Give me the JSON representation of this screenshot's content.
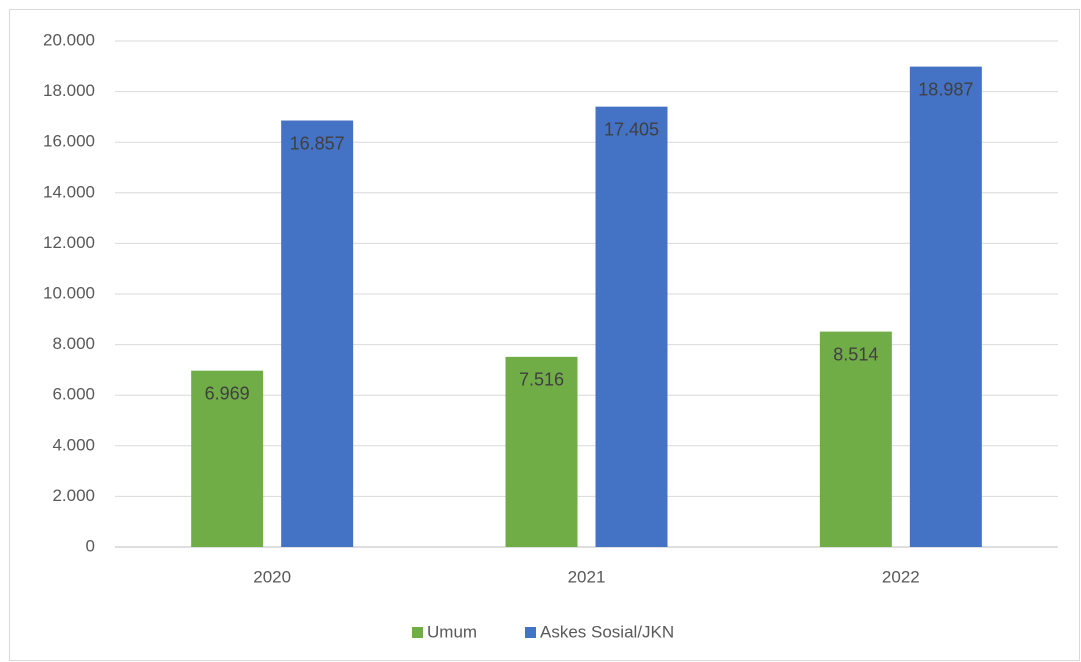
{
  "chart_data": {
    "type": "bar",
    "categories": [
      "2020",
      "2021",
      "2022"
    ],
    "series": [
      {
        "name": "Umum",
        "color": "#70ad47",
        "values": [
          6969,
          7516,
          8514
        ],
        "value_labels": [
          "6.969",
          "7.516",
          "8.514"
        ]
      },
      {
        "name": "Askes Sosial/JKN",
        "color": "#4472c4",
        "values": [
          16857,
          17405,
          18987
        ],
        "value_labels": [
          "16.857",
          "17.405",
          "18.987"
        ]
      }
    ],
    "ylim": [
      0,
      20000
    ],
    "yticks": [
      0,
      {
        "value": 2000,
        "label": "2.000"
      },
      {
        "value": 4000,
        "label": "4.000"
      },
      {
        "value": 6000,
        "label": "6.000"
      },
      {
        "value": 8000,
        "label": "8.000"
      },
      {
        "value": 10000,
        "label": "10.000"
      },
      {
        "value": 12000,
        "label": "12.000"
      },
      {
        "value": 14000,
        "label": "14.000"
      },
      {
        "value": 16000,
        "label": "16.000"
      },
      {
        "value": 18000,
        "label": "18.000"
      },
      {
        "value": 20000,
        "label": "20.000"
      }
    ],
    "grid": true,
    "legend": "bottom"
  }
}
